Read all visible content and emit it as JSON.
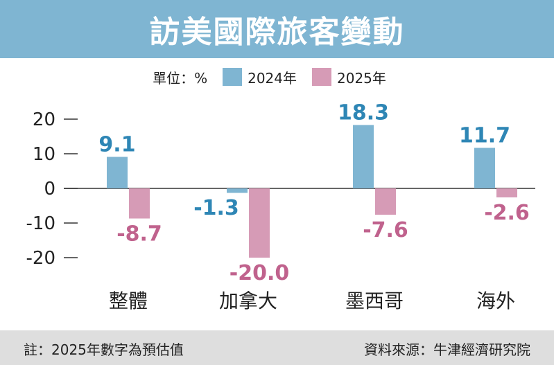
{
  "title": "訪美國際旅客變動",
  "legend": {
    "unit": "單位：%",
    "items": [
      {
        "label": "2024年",
        "color": "#7fb5d2"
      },
      {
        "label": "2025年",
        "color": "#d69bb6"
      }
    ]
  },
  "footer": {
    "note": "註：2025年數字為預估值",
    "source": "資料來源：牛津經濟研究院"
  },
  "chart_data": {
    "type": "bar",
    "title": "訪美國際旅客變動",
    "categories": [
      "整體",
      "加拿大",
      "墨西哥",
      "海外"
    ],
    "series": [
      {
        "name": "2024年",
        "values": [
          9.1,
          -1.3,
          18.3,
          11.7
        ],
        "color": "#7fb5d2",
        "label_color": "#2e86b5"
      },
      {
        "name": "2025年",
        "values": [
          -8.7,
          -20.0,
          -7.6,
          -2.6
        ],
        "color": "#d69bb6",
        "label_color": "#c0628d"
      }
    ],
    "value_labels": [
      [
        "9.1",
        "-1.3",
        "18.3",
        "11.7"
      ],
      [
        "-8.7",
        "-20.0",
        "-7.6",
        "-2.6"
      ]
    ],
    "yticks": [
      "20",
      "10",
      "0",
      "-10",
      "-20"
    ],
    "ylim": [
      -20,
      20
    ],
    "grid": false,
    "legend_position": "top-center"
  }
}
